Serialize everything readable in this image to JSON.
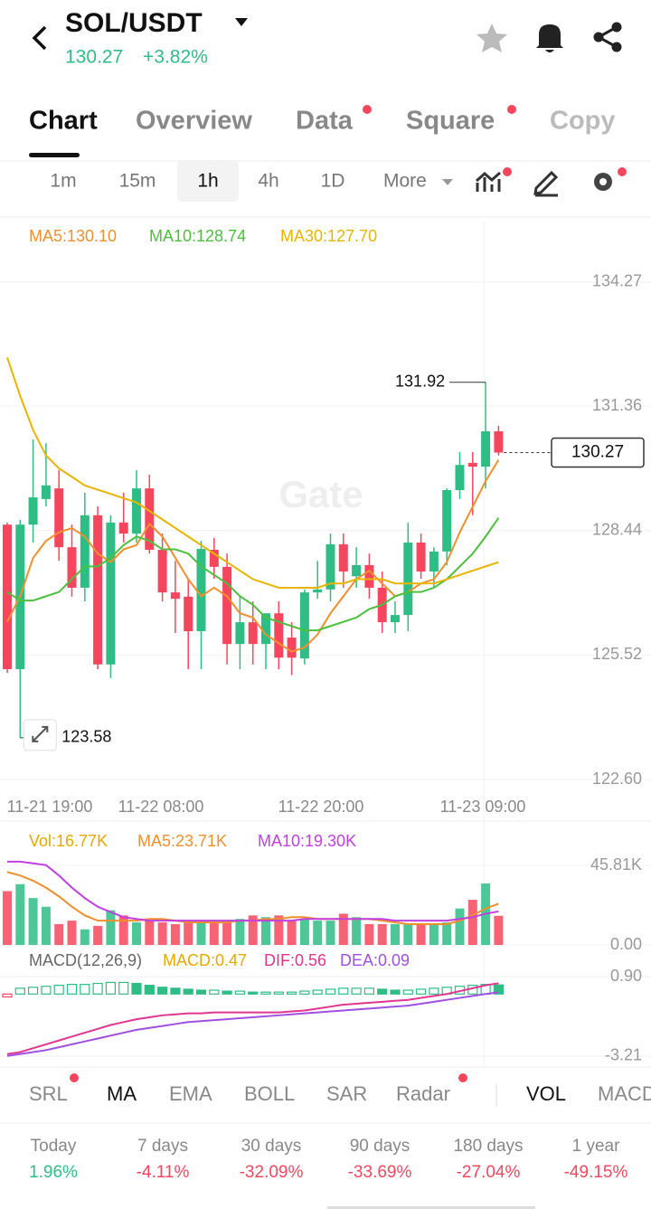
{
  "header": {
    "pair": "SOL/USDT",
    "price": "130.27",
    "change": "+3.82%"
  },
  "tabs": [
    "Chart",
    "Overview",
    "Data",
    "Square",
    "Copy"
  ],
  "intervals": [
    "1m",
    "15m",
    "1h",
    "4h",
    "1D",
    "More"
  ],
  "chart_data": [
    {
      "type": "candlestick",
      "watermark": "Gate",
      "up_color": "#2ebd85",
      "down_color": "#f6465d",
      "open": [
        128.58,
        125.19,
        128.58,
        129.18,
        129.43,
        128.05,
        127.1,
        128.8,
        125.3,
        128.63,
        128.37,
        129.43,
        127.99,
        126.99,
        126.89,
        126.08,
        127.99,
        127.59,
        125.78,
        126.29,
        125.78,
        126.5,
        125.93,
        125.44,
        126.99,
        127.06,
        128.12,
        127.37,
        127.63,
        127.1,
        126.29,
        126.46,
        128.16,
        127.48,
        127.95,
        129.39,
        130.03,
        129.94,
        130.77
      ],
      "high": [
        128.63,
        128.69,
        130.58,
        130.49,
        129.86,
        128.58,
        129.33,
        129.01,
        128.8,
        129.33,
        129.86,
        129.75,
        128.37,
        127.73,
        127.31,
        128.2,
        128.27,
        127.9,
        126.89,
        126.78,
        126.5,
        126.78,
        126.29,
        127.06,
        127.73,
        128.37,
        128.37,
        128.05,
        127.9,
        127.48,
        126.78,
        128.63,
        128.37,
        128.05,
        129.43,
        130.28,
        130.28,
        131.92,
        130.9
      ],
      "low": [
        125.1,
        123.58,
        128.16,
        129.01,
        127.73,
        126.89,
        126.78,
        125.19,
        124.98,
        128.16,
        128.16,
        127.9,
        126.78,
        126.04,
        125.19,
        125.19,
        127.31,
        125.3,
        125.19,
        125.3,
        125.19,
        125.19,
        125.05,
        125.3,
        126.84,
        126.78,
        127.1,
        127.1,
        126.84,
        126.04,
        126.04,
        126.08,
        127.31,
        127.1,
        127.63,
        129.18,
        128.8,
        129.43,
        130.2
      ],
      "close": [
        125.19,
        128.58,
        129.22,
        129.5,
        128.05,
        127.1,
        128.8,
        125.3,
        128.63,
        128.37,
        129.43,
        127.99,
        126.99,
        126.84,
        126.08,
        128.01,
        127.59,
        125.78,
        126.29,
        125.78,
        126.5,
        125.46,
        125.46,
        126.99,
        127.06,
        128.12,
        127.48,
        127.63,
        127.1,
        126.29,
        126.46,
        128.16,
        127.48,
        127.95,
        129.39,
        129.98,
        129.94,
        130.77,
        130.27
      ],
      "series": [
        {
          "name": "MA5:130.10",
          "color": "#f0902d",
          "values": [
            126.3,
            126.9,
            127.8,
            128.2,
            128.4,
            128.5,
            128.3,
            127.9,
            127.7,
            128.0,
            128.1,
            128.6,
            128.3,
            127.8,
            127.3,
            126.9,
            127.1,
            126.9,
            126.5,
            126.4,
            126.0,
            125.8,
            125.6,
            125.7,
            126.0,
            126.5,
            126.9,
            127.3,
            127.5,
            127.2,
            126.9,
            127.0,
            127.2,
            127.3,
            127.7,
            128.4,
            129.0,
            129.6,
            130.1
          ]
        },
        {
          "name": "MA10:128.74",
          "color": "#4cc03d",
          "values": [
            127.0,
            126.8,
            126.8,
            126.9,
            127.0,
            127.3,
            127.6,
            127.6,
            127.8,
            128.1,
            128.3,
            128.2,
            128.0,
            128.0,
            127.9,
            127.6,
            127.4,
            127.2,
            126.9,
            126.7,
            126.4,
            126.3,
            126.2,
            126.1,
            126.1,
            126.2,
            126.3,
            126.4,
            126.6,
            126.7,
            126.9,
            127.0,
            127.0,
            127.1,
            127.3,
            127.6,
            127.9,
            128.3,
            128.74
          ]
        },
        {
          "name": "MA30:127.70",
          "color": "#e8b400",
          "values": [
            132.5,
            131.6,
            130.8,
            130.2,
            129.9,
            129.7,
            129.5,
            129.4,
            129.3,
            129.2,
            129.1,
            128.9,
            128.7,
            128.5,
            128.3,
            128.1,
            127.9,
            127.7,
            127.5,
            127.3,
            127.2,
            127.1,
            127.1,
            127.1,
            127.1,
            127.2,
            127.2,
            127.3,
            127.3,
            127.3,
            127.2,
            127.2,
            127.2,
            127.2,
            127.3,
            127.4,
            127.5,
            127.6,
            127.7
          ]
        }
      ],
      "ylim": [
        122.22,
        135.69
      ],
      "yticks": [
        134.27,
        131.36,
        128.44,
        125.52,
        {
          "value": 122.6,
          "label": "122.60"
        }
      ],
      "x_labels": [
        "11-21 19:00",
        "11-22 08:00",
        "11-22 20:00",
        "11-23 09:00"
      ],
      "grid": true
    },
    {
      "type": "bar",
      "series": [
        {
          "name": "Vol:16.77K",
          "type": "bar",
          "color": "#e8a800",
          "values": [
            31,
            35,
            27,
            22,
            12,
            14,
            9,
            11,
            20,
            17,
            13,
            14,
            13,
            12,
            13,
            14,
            13,
            14,
            15,
            17,
            16,
            17,
            14,
            15,
            14,
            14,
            18,
            16,
            12,
            12,
            12,
            12,
            12,
            12,
            13,
            21,
            26,
            35.4,
            16.77
          ]
        },
        {
          "name": "MA5:23.71K",
          "type": "line",
          "color": "#f0902d",
          "values": [
            42,
            40,
            37,
            33,
            28,
            22,
            17,
            14,
            14,
            14,
            14,
            15,
            15,
            14,
            13,
            13,
            13,
            13,
            14,
            14,
            15,
            15,
            16,
            16,
            15,
            15,
            15,
            15,
            15,
            14,
            13,
            12,
            12,
            12,
            12,
            14,
            17,
            21,
            23.71
          ]
        },
        {
          "name": "MA10:19.30K",
          "type": "line",
          "color": "#c040e0",
          "values": [
            48,
            48,
            47,
            46,
            40,
            33,
            27,
            22,
            19,
            16,
            15,
            14,
            14,
            14,
            14,
            14,
            14,
            14,
            14,
            14,
            14,
            14,
            14,
            15,
            15,
            15,
            15,
            15,
            15,
            15,
            14,
            14,
            14,
            14,
            14,
            15,
            16,
            18,
            19.3
          ]
        }
      ],
      "ylim": [
        0,
        67.7
      ],
      "yticks": [
        {
          "value": 45.81,
          "label": "45.81K"
        },
        {
          "value": 0,
          "label": "0.00"
        }
      ]
    },
    {
      "type": "macd",
      "title": "MACD(12,26,9)",
      "series": [
        {
          "name": "MACD:0.47",
          "type": "bar",
          "color": "#e8a800",
          "values": [
            -0.15,
            0.3,
            0.35,
            0.4,
            0.45,
            0.5,
            0.5,
            0.55,
            0.6,
            0.6,
            0.55,
            0.45,
            0.35,
            0.3,
            0.25,
            0.2,
            0.2,
            0.15,
            0.15,
            0.1,
            0.1,
            0.1,
            0.1,
            0.15,
            0.2,
            0.25,
            0.3,
            0.3,
            0.3,
            0.25,
            0.2,
            0.2,
            0.25,
            0.3,
            0.35,
            0.4,
            0.45,
            0.5,
            0.47
          ]
        },
        {
          "name": "DIF:0.56",
          "type": "line",
          "color": "#e0368f",
          "values": [
            -3.1,
            -3.0,
            -2.8,
            -2.6,
            -2.4,
            -2.2,
            -2.0,
            -1.8,
            -1.6,
            -1.45,
            -1.3,
            -1.2,
            -1.1,
            -1.05,
            -1.0,
            -1.0,
            -0.95,
            -0.95,
            -0.95,
            -0.95,
            -0.95,
            -0.95,
            -0.9,
            -0.85,
            -0.75,
            -0.65,
            -0.55,
            -0.5,
            -0.45,
            -0.4,
            -0.35,
            -0.3,
            -0.2,
            -0.1,
            0.0,
            0.15,
            0.3,
            0.45,
            0.56
          ]
        },
        {
          "name": "DEA:0.09",
          "type": "line",
          "color": "#a050e0",
          "values": [
            -3.2,
            -3.1,
            -3.0,
            -2.9,
            -2.75,
            -2.6,
            -2.45,
            -2.3,
            -2.15,
            -2.0,
            -1.85,
            -1.75,
            -1.65,
            -1.55,
            -1.45,
            -1.4,
            -1.35,
            -1.3,
            -1.25,
            -1.2,
            -1.15,
            -1.1,
            -1.05,
            -1.0,
            -0.95,
            -0.9,
            -0.85,
            -0.8,
            -0.75,
            -0.7,
            -0.65,
            -0.6,
            -0.5,
            -0.4,
            -0.3,
            -0.2,
            -0.1,
            0.0,
            0.09
          ]
        }
      ],
      "ylim": [
        -3.68,
        2.07
      ],
      "yticks": [
        {
          "value": 0.9,
          "label": "0.90"
        },
        -3.21
      ]
    }
  ],
  "indicators": [
    "SRL",
    "MA",
    "EMA",
    "BOLL",
    "SAR",
    "Radar",
    "VOL",
    "MACD"
  ],
  "performance": [
    {
      "label": "Today",
      "value": "1.96%"
    },
    {
      "label": "7 days",
      "value": "-4.11%"
    },
    {
      "label": "30 days",
      "value": "-32.09%"
    },
    {
      "label": "90 days",
      "value": "-33.69%"
    },
    {
      "label": "180 days",
      "value": "-27.04%"
    },
    {
      "label": "1 year",
      "value": "-49.15%"
    }
  ]
}
